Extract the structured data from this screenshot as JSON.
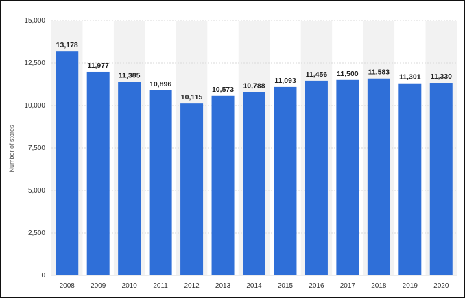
{
  "chart_data": {
    "type": "bar",
    "categories": [
      "2008",
      "2009",
      "2010",
      "2011",
      "2012",
      "2013",
      "2014",
      "2015",
      "2016",
      "2017",
      "2018",
      "2019",
      "2020"
    ],
    "values": [
      13178,
      11977,
      11385,
      10896,
      10115,
      10573,
      10788,
      11093,
      11456,
      11500,
      11583,
      11301,
      11330
    ],
    "value_labels": [
      "13,178",
      "11,977",
      "11,385",
      "10,896",
      "10,115",
      "10,573",
      "10,788",
      "11,093",
      "11,456",
      "11,500",
      "11,583",
      "11,301",
      "11,330"
    ],
    "ylabel": "Number of stores",
    "ylim": [
      0,
      15000
    ],
    "yticks": [
      0,
      2500,
      5000,
      7500,
      10000,
      12500,
      15000
    ],
    "ytick_labels": [
      "0",
      "2,500",
      "5,000",
      "7,500",
      "10,000",
      "12,500",
      "15,000"
    ],
    "grid": true,
    "bar_color": "#2f6fd8",
    "band_color": "#f2f2f2"
  }
}
